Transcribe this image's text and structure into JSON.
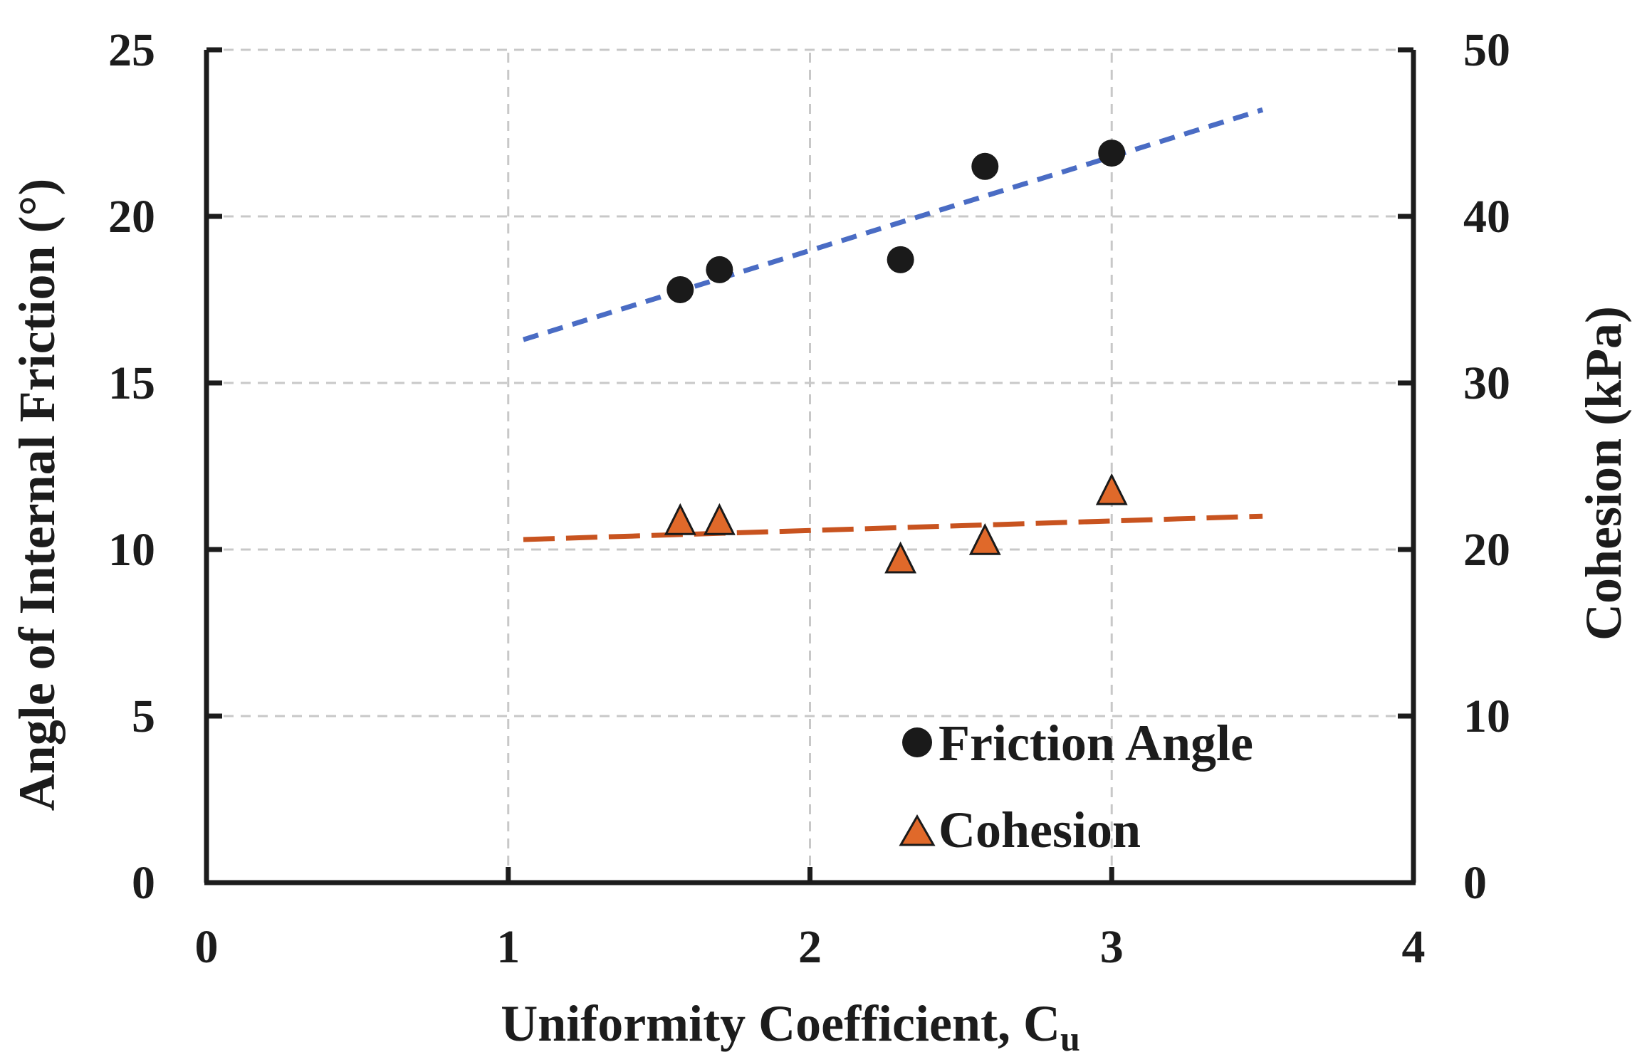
{
  "chart_data": {
    "type": "scatter",
    "title": "",
    "xlabel": "Uniformity   Coefficient, C",
    "xlabel_subscript": "u",
    "ylabel_left": "Angle of Internal Friction   (°)",
    "ylabel_right": "Cohesion (kPa)",
    "xlim": [
      0,
      4
    ],
    "ylim_left": [
      0,
      25
    ],
    "ylim_right": [
      0,
      50
    ],
    "x_ticks": [
      0,
      1,
      2,
      3,
      4
    ],
    "y_left_ticks": [
      0,
      5,
      10,
      15,
      20,
      25
    ],
    "y_right_ticks": [
      0,
      10,
      20,
      30,
      40,
      50
    ],
    "grid": true,
    "legend_position": "bottom-right",
    "series": [
      {
        "name": "Friction Angle",
        "axis": "left",
        "marker": "circle",
        "color": "#1a1a1a",
        "points": [
          [
            1.57,
            17.8
          ],
          [
            1.7,
            18.4
          ],
          [
            2.3,
            18.7
          ],
          [
            2.58,
            21.5
          ],
          [
            3.0,
            21.9
          ]
        ],
        "trendline": {
          "x": [
            1.05,
            3.5
          ],
          "y": [
            16.3,
            23.2
          ],
          "color": "#4a6cc4",
          "style": "dashed"
        }
      },
      {
        "name": "Cohesion",
        "axis": "right",
        "marker": "triangle",
        "color": "#e0692a",
        "points": [
          [
            1.57,
            21.7
          ],
          [
            1.7,
            21.7
          ],
          [
            2.3,
            19.4
          ],
          [
            2.58,
            20.5
          ],
          [
            3.0,
            23.5
          ]
        ],
        "trendline": {
          "x": [
            1.05,
            3.5
          ],
          "y": [
            20.6,
            22.0
          ],
          "color": "#c8531f",
          "style": "long-dashed"
        }
      }
    ]
  }
}
